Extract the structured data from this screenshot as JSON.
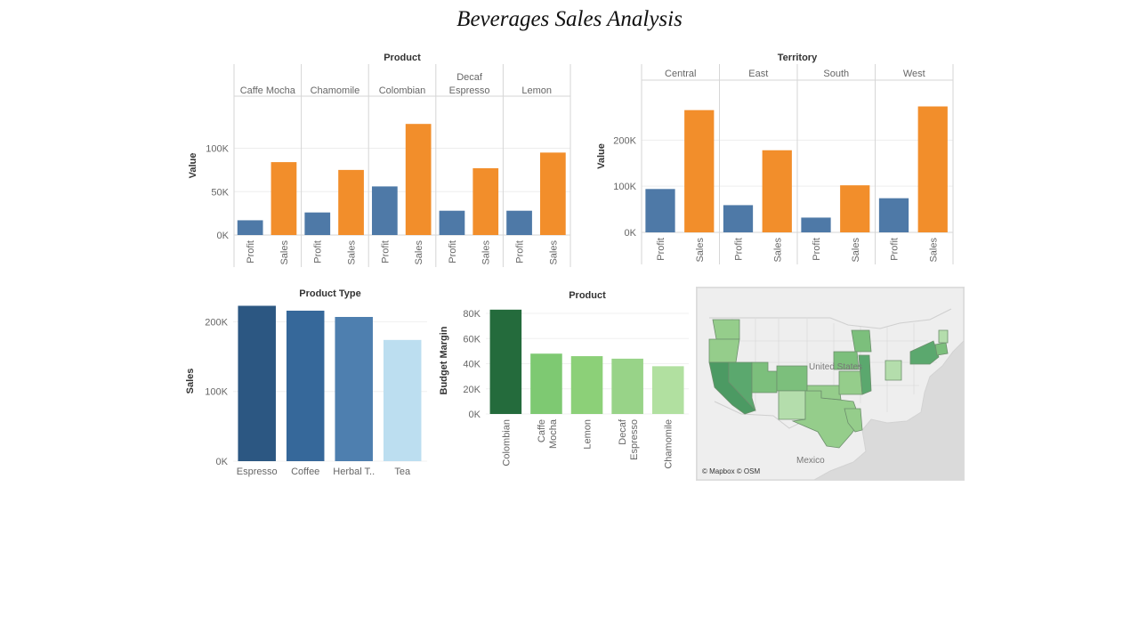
{
  "title": "Beverages Sales Analysis",
  "colors": {
    "profit": "#4e79a7",
    "sales": "#f28e2b",
    "type_bars": [
      "#2c5782",
      "#36689a",
      "#4e7faf",
      "#bcdef0"
    ],
    "margin_bars": [
      "#246b3c",
      "#7ec972",
      "#8cd078",
      "#98d388",
      "#b1e0a0"
    ],
    "map_fills": [
      "#4c9a63",
      "#5ba86e",
      "#7cbf7c",
      "#95cd8b",
      "#b4ddac"
    ]
  },
  "chart_data": [
    {
      "type": "bar",
      "title": "Product",
      "ylabel": "Value",
      "ylim": [
        0,
        160000
      ],
      "yticks": [
        "0K",
        "50K",
        "100K"
      ],
      "panes": [
        "Caffe Mocha",
        "Chamomile",
        "Colombian",
        "Decaf Espresso",
        "Lemon"
      ],
      "measures": [
        "Profit",
        "Sales"
      ],
      "series": [
        {
          "name": "Profit",
          "values": [
            17000,
            26000,
            56000,
            28000,
            28000
          ]
        },
        {
          "name": "Sales",
          "values": [
            84000,
            75000,
            128000,
            77000,
            95000
          ]
        }
      ]
    },
    {
      "type": "bar",
      "title": "Territory",
      "ylabel": "Value",
      "ylim": [
        0,
        330000
      ],
      "yticks": [
        "0K",
        "100K",
        "200K"
      ],
      "panes": [
        "Central",
        "East",
        "South",
        "West"
      ],
      "measures": [
        "Profit",
        "Sales"
      ],
      "series": [
        {
          "name": "Profit",
          "values": [
            94000,
            59000,
            32000,
            74000
          ]
        },
        {
          "name": "Sales",
          "values": [
            265000,
            178000,
            102000,
            273000
          ]
        }
      ]
    },
    {
      "type": "bar",
      "title": "Product Type",
      "ylabel": "Sales",
      "ylim": [
        0,
        230000
      ],
      "yticks": [
        "0K",
        "100K",
        "200K"
      ],
      "categories": [
        "Espresso",
        "Coffee",
        "Herbal T..",
        "Tea"
      ],
      "values": [
        223000,
        216000,
        207000,
        174000
      ]
    },
    {
      "type": "bar",
      "title": "Product",
      "ylabel": "Budget Margin",
      "ylim": [
        0,
        85000
      ],
      "yticks": [
        "0K",
        "20K",
        "40K",
        "60K",
        "80K"
      ],
      "categories": [
        "Colombian",
        "Caffe Mocha",
        "Lemon",
        "Decaf Espresso",
        "Chamomile"
      ],
      "values": [
        83000,
        48000,
        46000,
        44000,
        38000
      ]
    }
  ],
  "map": {
    "labels": [
      "United States",
      "Mexico"
    ],
    "credit": "© Mapbox © OSM"
  }
}
